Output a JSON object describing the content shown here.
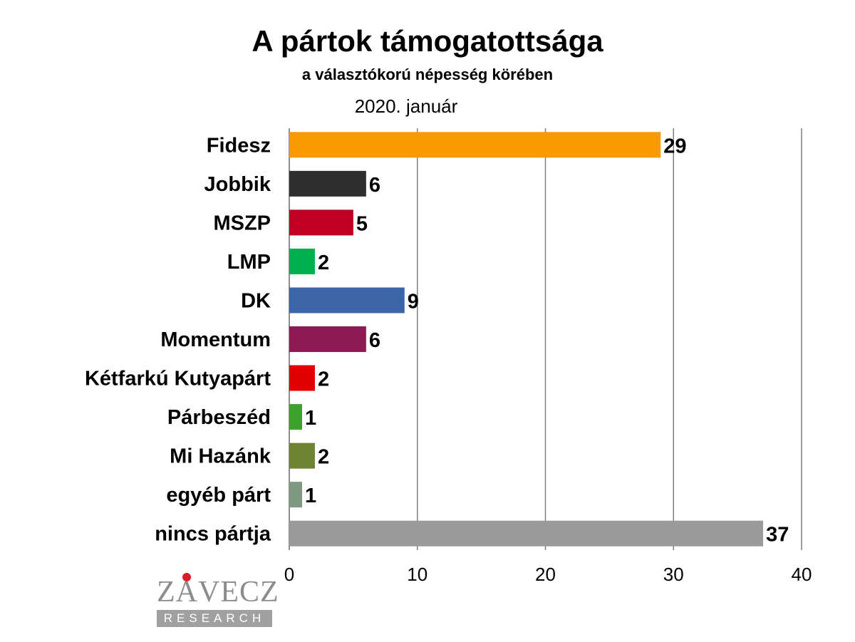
{
  "chart_data": {
    "type": "bar",
    "orientation": "horizontal",
    "title": "A pártok támogatottsága",
    "subtitle": "a választókorú népesség körében",
    "date_label": "2020. január",
    "categories": [
      "Fidesz",
      "Jobbik",
      "MSZP",
      "LMP",
      "DK",
      "Momentum",
      "Kétfarkú Kutyapárt",
      "Párbeszéd",
      "Mi Hazánk",
      "egyéb párt",
      "nincs pártja"
    ],
    "values": [
      29,
      6,
      5,
      2,
      9,
      6,
      2,
      1,
      2,
      1,
      37
    ],
    "colors": [
      "#f99b00",
      "#2e2e2e",
      "#c00022",
      "#00b050",
      "#3a66a7",
      "#8e1a53",
      "#e00000",
      "#3da22c",
      "#6e8232",
      "#7f9980",
      "#9a9a9a"
    ],
    "xlim": [
      0,
      40
    ],
    "xticks": [
      0,
      10,
      20,
      30,
      40
    ],
    "grid": true,
    "data_labels": true
  },
  "logo": {
    "name": "ZÁVECZ",
    "sub": "RESEARCH"
  }
}
